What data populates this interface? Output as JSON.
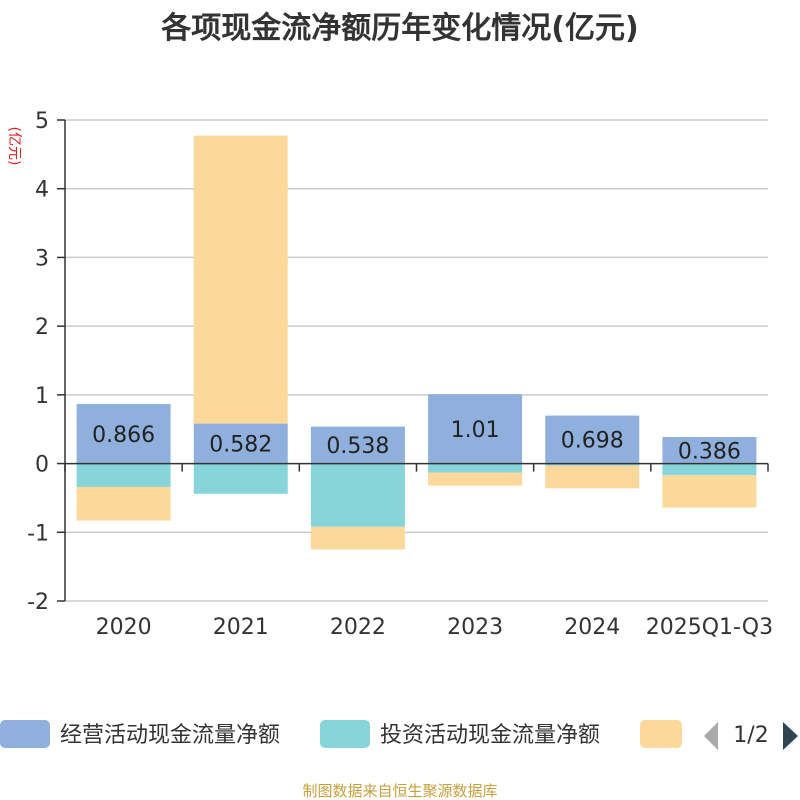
{
  "chart_data": {
    "type": "bar",
    "stacked": true,
    "title": "各项现金流净额历年变化情况(亿元)",
    "ylabel": "(亿元)",
    "ylim": [
      -2,
      5
    ],
    "yticks": [
      "-2",
      "-1",
      "0",
      "1",
      "2",
      "3",
      "4",
      "5"
    ],
    "grid": true,
    "categories": [
      "2020",
      "2021",
      "2022",
      "2023",
      "2024",
      "2025Q1-Q3"
    ],
    "series": [
      {
        "name": "经营活动现金流量净额",
        "color": "#8fb0dc",
        "values": [
          0.866,
          0.582,
          0.538,
          1.01,
          0.698,
          0.386
        ],
        "labels": [
          "0.866",
          "0.582",
          "0.538",
          "1.01",
          "0.698",
          "0.386"
        ]
      },
      {
        "name": "投资活动现金流量净额",
        "color": "#87d5d8",
        "values": [
          -0.34,
          -0.44,
          -0.92,
          -0.13,
          -0.03,
          -0.17
        ]
      },
      {
        "name": "",
        "color": "#fdd89b",
        "values": [
          -0.49,
          4.19,
          -0.33,
          -0.19,
          -0.33,
          -0.47
        ]
      }
    ]
  },
  "legend": {
    "page": "1/2"
  },
  "footer": {
    "source": "制图数据来自恒生聚源数据库"
  }
}
